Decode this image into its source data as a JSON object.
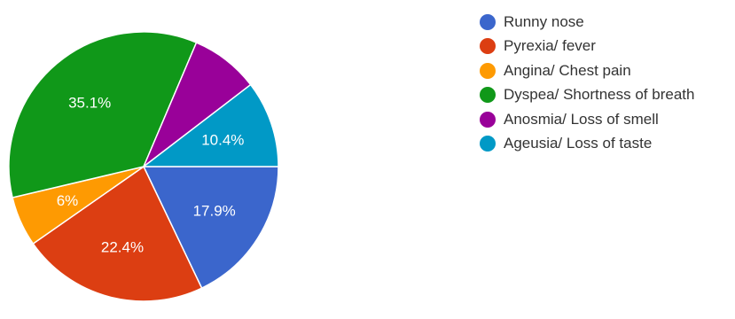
{
  "chart_data": {
    "type": "pie",
    "title": "",
    "legend_position": "right",
    "slices": [
      {
        "name": "Runny nose",
        "value": 17.9,
        "label": "17.9%",
        "color": "#3b66cc"
      },
      {
        "name": "Pyrexia/ fever",
        "value": 22.4,
        "label": "22.4%",
        "color": "#dc3e12"
      },
      {
        "name": "Angina/ Chest pain",
        "value": 6.0,
        "label": "6%",
        "color": "#fe9a02"
      },
      {
        "name": "Dyspea/ Shortness of breath",
        "value": 35.1,
        "label": "35.1%",
        "color": "#109819"
      },
      {
        "name": "Anosmia/ Loss of smell",
        "value": 8.2,
        "label": "",
        "color": "#990199"
      },
      {
        "name": "Ageusia/ Loss of taste",
        "value": 10.4,
        "label": "10.4%",
        "color": "#0199c6"
      }
    ]
  }
}
